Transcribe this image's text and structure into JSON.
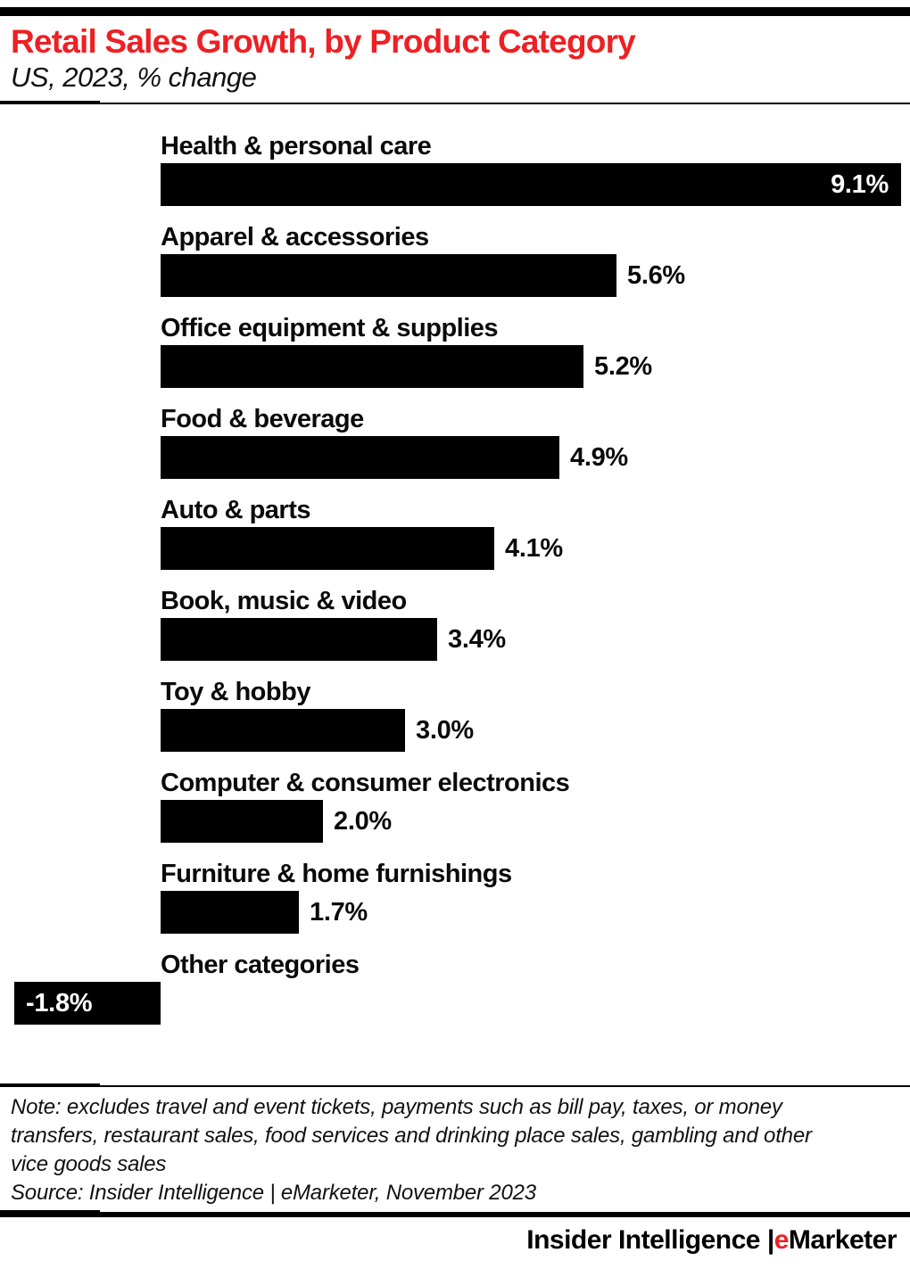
{
  "header": {
    "title": "Retail Sales Growth, by Product Category",
    "subtitle": "US, 2023, % change"
  },
  "chart_data": {
    "type": "bar",
    "orientation": "horizontal",
    "title": "Retail Sales Growth, by Product Category",
    "subtitle": "US, 2023, % change",
    "xlabel": "",
    "ylabel": "",
    "unit": "% change",
    "xlim": [
      -1.8,
      9.1
    ],
    "grid": false,
    "legend": false,
    "bar_color": "#000000",
    "categories": [
      "Health & personal care",
      "Apparel & accessories",
      "Office equipment & supplies",
      "Food & beverage",
      "Auto & parts",
      "Book, music & video",
      "Toy & hobby",
      "Computer & consumer electronics",
      "Furniture & home furnishings",
      "Other categories"
    ],
    "values": [
      9.1,
      5.6,
      5.2,
      4.9,
      4.1,
      3.4,
      3.0,
      2.0,
      1.7,
      -1.8
    ],
    "value_labels": [
      "9.1%",
      "5.6%",
      "5.2%",
      "4.9%",
      "4.1%",
      "3.4%",
      "3.0%",
      "2.0%",
      "1.7%",
      "-1.8%"
    ]
  },
  "note": {
    "note_text": "Note: excludes travel and event tickets, payments such as bill pay, taxes, or money transfers, restaurant sales, food services and drinking place sales, gambling and other vice goods sales",
    "source_text": "Source: Insider Intelligence | eMarketer, November 2023"
  },
  "brand": {
    "left": "Insider Intelligence ",
    "pipe": "|",
    "e": "e",
    "rest": "Marketer"
  },
  "colors": {
    "accent_red": "#ED2024",
    "bar": "#000000",
    "background": "#FFFFFF",
    "text": "#000000",
    "inside_value_text": "#FFFFFF"
  }
}
